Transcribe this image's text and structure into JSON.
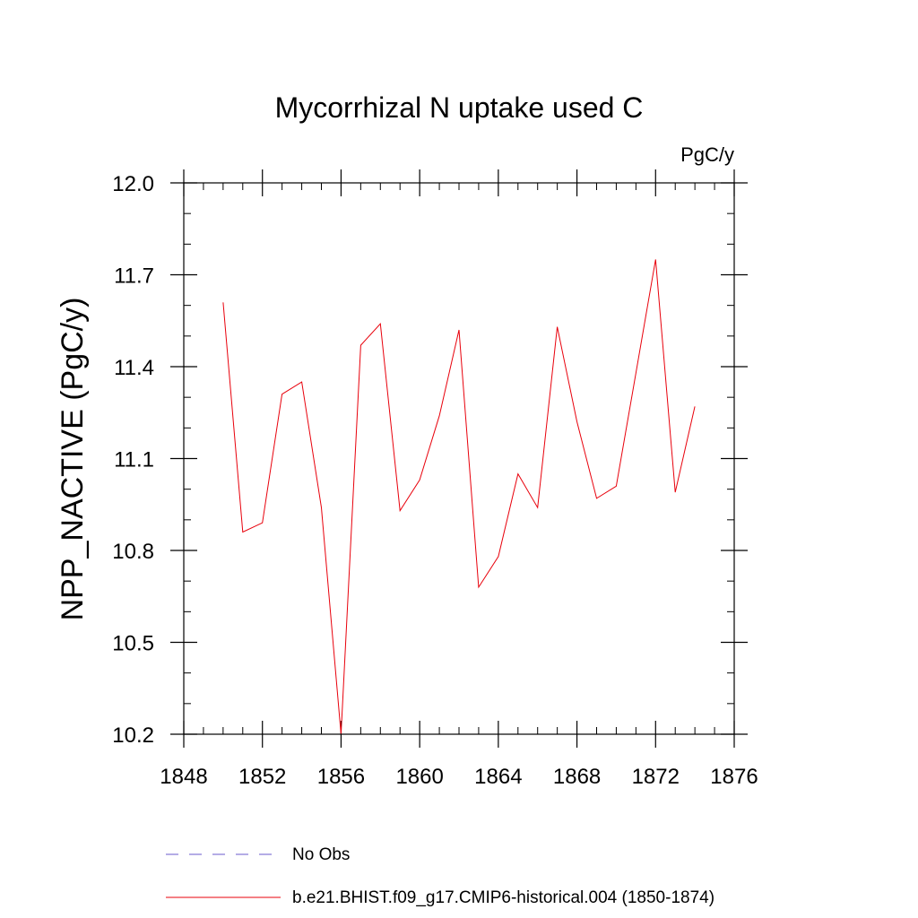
{
  "chart_data": {
    "type": "line",
    "title": "Mycorrhizal N uptake used C",
    "units_label": "PgC/y",
    "ylabel": "NPP_NACTIVE  (PgC/y)",
    "xlabel": "",
    "xlim": [
      1848,
      1876
    ],
    "ylim": [
      10.2,
      12.0
    ],
    "xticks": [
      1848,
      1852,
      1856,
      1860,
      1864,
      1868,
      1872,
      1876
    ],
    "yticks": [
      10.2,
      10.5,
      10.8,
      11.1,
      11.4,
      11.7,
      12.0
    ],
    "ytick_labels": [
      "10.2",
      "10.5",
      "10.8",
      "11.1",
      "11.4",
      "11.7",
      "12.0"
    ],
    "xminor_step": 1,
    "yminor_step": 0.1,
    "grid": false,
    "series": [
      {
        "name": "b.e21.BHIST.f09_g17.CMIP6-historical.004 (1850-1874)",
        "color": "#e8000b",
        "x": [
          1850,
          1851,
          1852,
          1853,
          1854,
          1855,
          1856,
          1857,
          1858,
          1859,
          1860,
          1861,
          1862,
          1863,
          1864,
          1865,
          1866,
          1867,
          1868,
          1869,
          1870,
          1871,
          1872,
          1873,
          1874
        ],
        "y": [
          11.61,
          10.86,
          10.89,
          11.31,
          11.35,
          10.94,
          10.2,
          11.47,
          11.54,
          10.93,
          11.03,
          11.24,
          11.52,
          10.68,
          10.78,
          11.05,
          10.94,
          11.53,
          11.22,
          10.97,
          11.01,
          11.38,
          11.75,
          10.99,
          11.27
        ]
      }
    ],
    "legend": {
      "placement": "bottom",
      "entries": [
        {
          "label": "No Obs",
          "color": "#6a5acd",
          "style": "dashed"
        },
        {
          "label": "b.e21.BHIST.f09_g17.CMIP6-historical.004 (1850-1874)",
          "color": "#e8000b",
          "style": "solid"
        }
      ]
    }
  }
}
